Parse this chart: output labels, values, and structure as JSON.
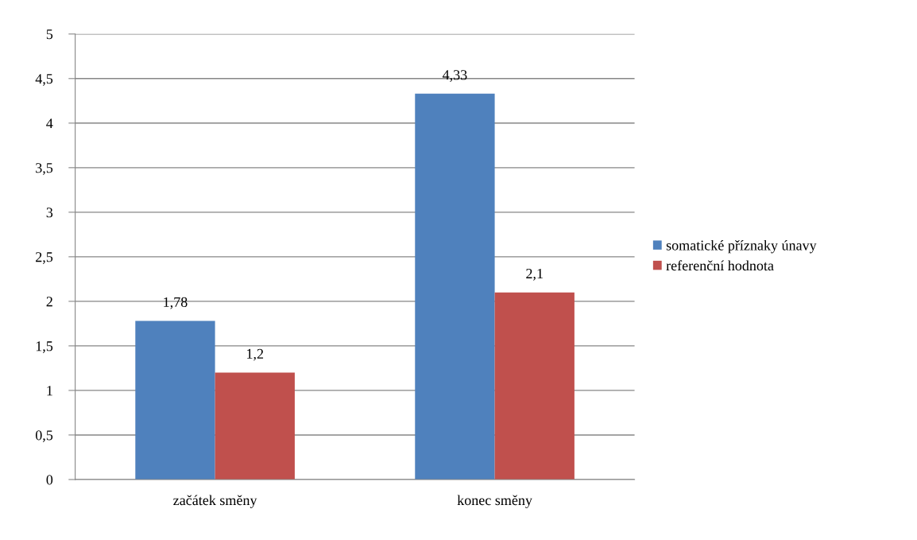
{
  "chart_data": {
    "type": "bar",
    "categories": [
      "začátek směny",
      "konec směny"
    ],
    "series": [
      {
        "name": "somatické příznaky únavy",
        "color": "#4f81bd",
        "values": [
          1.78,
          4.33
        ],
        "value_labels": [
          "1,78",
          "4,33"
        ]
      },
      {
        "name": "referenční hodnota",
        "color": "#c0504d",
        "values": [
          1.2,
          2.1
        ],
        "value_labels": [
          "1,2",
          "2,1"
        ]
      }
    ],
    "ylim": [
      0,
      5
    ],
    "yticks": [
      0,
      {
        "value": 0.5,
        "label": "0,5"
      },
      1,
      {
        "value": 1.5,
        "label": "1,5"
      },
      2,
      {
        "value": 2.5,
        "label": "2,5"
      },
      3,
      {
        "value": 3.5,
        "label": "3,5"
      },
      4,
      {
        "value": 4.5,
        "label": "4,5"
      },
      5
    ],
    "grid": "y",
    "legend": "right"
  }
}
